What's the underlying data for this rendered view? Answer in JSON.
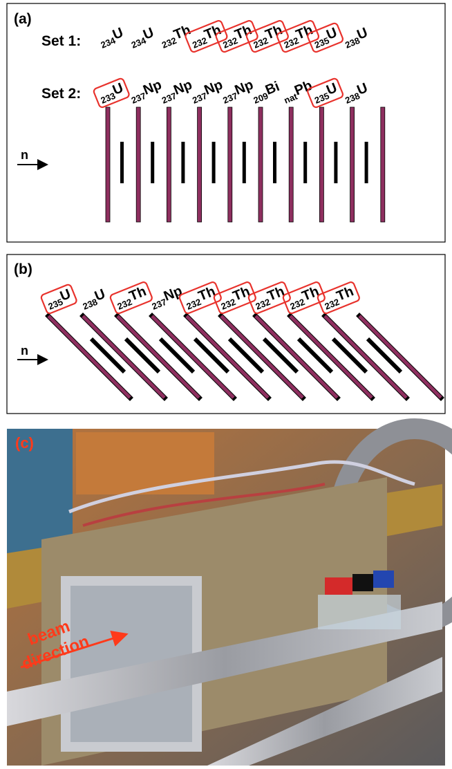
{
  "panel_a": {
    "label": "(a)",
    "beam_label": "n",
    "set1": {
      "label": "Set 1:",
      "targets": [
        {
          "mass": "234",
          "element": "U",
          "boxed": false
        },
        {
          "mass": "234",
          "element": "U",
          "boxed": false
        },
        {
          "mass": "232",
          "element": "Th",
          "boxed": false
        },
        {
          "mass": "232",
          "element": "Th",
          "boxed": true
        },
        {
          "mass": "232",
          "element": "Th",
          "boxed": true
        },
        {
          "mass": "232",
          "element": "Th",
          "boxed": true
        },
        {
          "mass": "232",
          "element": "Th",
          "boxed": true
        },
        {
          "mass": "235",
          "element": "U",
          "boxed": true
        },
        {
          "mass": "238",
          "element": "U",
          "boxed": false
        }
      ]
    },
    "set2": {
      "label": "Set 2:",
      "targets": [
        {
          "mass": "233",
          "element": "U",
          "boxed": true
        },
        {
          "mass": "237",
          "element": "Np",
          "boxed": false
        },
        {
          "mass": "237",
          "element": "Np",
          "boxed": false
        },
        {
          "mass": "237",
          "element": "Np",
          "boxed": false
        },
        {
          "mass": "237",
          "element": "Np",
          "boxed": false
        },
        {
          "mass": "209",
          "element": "Bi",
          "boxed": false
        },
        {
          "mass": "nat",
          "element": "Pb",
          "boxed": false
        },
        {
          "mass": "235",
          "element": "U",
          "boxed": true
        },
        {
          "mass": "238",
          "element": "U",
          "boxed": false
        }
      ]
    }
  },
  "panel_b": {
    "label": "(b)",
    "beam_label": "n",
    "targets": [
      {
        "mass": "235",
        "element": "U",
        "boxed": true
      },
      {
        "mass": "238",
        "element": "U",
        "boxed": false
      },
      {
        "mass": "232",
        "element": "Th",
        "boxed": true
      },
      {
        "mass": "237",
        "element": "Np",
        "boxed": false
      },
      {
        "mass": "232",
        "element": "Th",
        "boxed": true
      },
      {
        "mass": "232",
        "element": "Th",
        "boxed": true
      },
      {
        "mass": "232",
        "element": "Th",
        "boxed": true
      },
      {
        "mass": "232",
        "element": "Th",
        "boxed": true
      },
      {
        "mass": "232",
        "element": "Th",
        "boxed": true
      }
    ]
  },
  "panel_c": {
    "label": "(c)",
    "annotation": [
      "beam",
      "direction"
    ]
  }
}
